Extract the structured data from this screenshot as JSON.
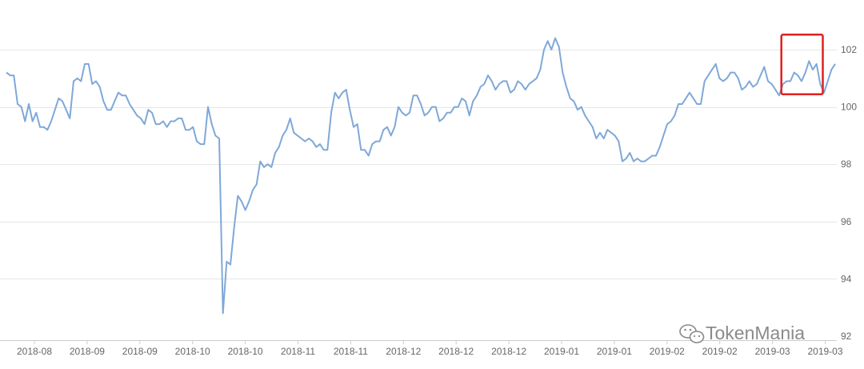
{
  "chart_data": {
    "type": "line",
    "y_ticks": [
      "92",
      "94",
      "96",
      "98",
      "100",
      "102"
    ],
    "y_tick_values": [
      92,
      94,
      96,
      98,
      100,
      102
    ],
    "ylim": [
      92,
      102.5
    ],
    "x_tick_labels": [
      "2018-08",
      "2018-09",
      "2018-09",
      "2018-10",
      "2018-10",
      "2018-11",
      "2018-11",
      "2018-12",
      "2018-12",
      "2018-12",
      "2019-01",
      "2019-01",
      "2019-02",
      "2019-02",
      "2019-03",
      "2019-03"
    ],
    "grid": true,
    "legend": "none",
    "line_color": "#7fa8d8",
    "highlight_color": "#e02020",
    "highlight_range": [
      0.935,
      0.985,
      101.0,
      102.3
    ],
    "watermark": "TokenMania",
    "values": [
      101.2,
      101.1,
      101.1,
      100.1,
      100.0,
      99.5,
      100.1,
      99.5,
      99.8,
      99.3,
      99.3,
      99.2,
      99.5,
      99.9,
      100.3,
      100.2,
      99.9,
      99.6,
      100.9,
      101.0,
      100.9,
      101.5,
      101.5,
      100.8,
      100.9,
      100.7,
      100.2,
      99.9,
      99.9,
      100.2,
      100.5,
      100.4,
      100.4,
      100.1,
      99.9,
      99.7,
      99.6,
      99.4,
      99.9,
      99.8,
      99.4,
      99.4,
      99.5,
      99.3,
      99.5,
      99.5,
      99.6,
      99.6,
      99.2,
      99.2,
      99.3,
      98.8,
      98.7,
      98.7,
      100.0,
      99.4,
      99.0,
      98.9,
      92.8,
      94.6,
      94.5,
      95.8,
      96.9,
      96.7,
      96.4,
      96.7,
      97.1,
      97.3,
      98.1,
      97.9,
      98.0,
      97.9,
      98.4,
      98.6,
      99.0,
      99.2,
      99.6,
      99.1,
      99.0,
      98.9,
      98.8,
      98.9,
      98.8,
      98.6,
      98.7,
      98.5,
      98.5,
      99.8,
      100.5,
      100.3,
      100.5,
      100.6,
      99.9,
      99.3,
      99.4,
      98.5,
      98.5,
      98.3,
      98.7,
      98.8,
      98.8,
      99.2,
      99.3,
      99.0,
      99.3,
      100.0,
      99.8,
      99.7,
      99.8,
      100.4,
      100.4,
      100.1,
      99.7,
      99.8,
      100.0,
      100.0,
      99.5,
      99.6,
      99.8,
      99.8,
      100.0,
      100.0,
      100.3,
      100.2,
      99.7,
      100.2,
      100.4,
      100.7,
      100.8,
      101.1,
      100.9,
      100.6,
      100.8,
      100.9,
      100.9,
      100.5,
      100.6,
      100.9,
      100.8,
      100.6,
      100.8,
      100.9,
      101.0,
      101.3,
      102.0,
      102.3,
      102.0,
      102.4,
      102.1,
      101.2,
      100.7,
      100.3,
      100.2,
      99.9,
      100.0,
      99.7,
      99.5,
      99.3,
      98.9,
      99.1,
      98.9,
      99.2,
      99.1,
      99.0,
      98.8,
      98.1,
      98.2,
      98.4,
      98.1,
      98.2,
      98.1,
      98.1,
      98.2,
      98.3,
      98.3,
      98.6,
      99.0,
      99.4,
      99.5,
      99.7,
      100.1,
      100.1,
      100.3,
      100.5,
      100.3,
      100.1,
      100.1,
      100.9,
      101.1,
      101.3,
      101.5,
      101.0,
      100.9,
      101.0,
      101.2,
      101.2,
      101.0,
      100.6,
      100.7,
      100.9,
      100.7,
      100.8,
      101.1,
      101.4,
      100.9,
      100.8,
      100.6,
      100.4,
      100.8,
      100.9,
      100.9,
      101.2,
      101.1,
      100.9,
      101.2,
      101.6,
      101.3,
      101.5,
      100.8,
      100.5,
      100.9,
      101.3,
      101.5
    ]
  }
}
